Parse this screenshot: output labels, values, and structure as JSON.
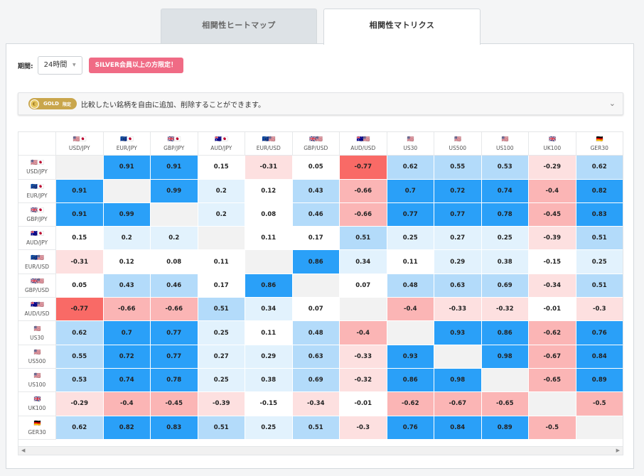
{
  "tabs": [
    {
      "label": "相関性ヒートマップ",
      "active": false
    },
    {
      "label": "相関性マトリクス",
      "active": true
    }
  ],
  "period": {
    "label": "期間:",
    "value": "24時間",
    "badge": "SILVER会員以上の方限定！"
  },
  "gold": {
    "badge": "GOLD",
    "badge_sub": "限定",
    "text": "比較したい銘柄を自由に追加、削除することができます。"
  },
  "colors": {
    "strong_pos": "#2aa0f8",
    "mid_pos": "#b3dbfa",
    "weak_pos": "#e2f2fd",
    "weak_neg": "#fde0e0",
    "mid_neg": "#fbb5b5",
    "strong_neg": "#f96a66",
    "diag": "#f2f2f2"
  },
  "matrix": {
    "symbols": [
      {
        "name": "USD/JPY",
        "flag": "🇺🇸🇯🇵"
      },
      {
        "name": "EUR/JPY",
        "flag": "🇪🇺🇯🇵"
      },
      {
        "name": "GBP/JPY",
        "flag": "🇬🇧🇯🇵"
      },
      {
        "name": "AUD/JPY",
        "flag": "🇦🇺🇯🇵"
      },
      {
        "name": "EUR/USD",
        "flag": "🇪🇺🇺🇸"
      },
      {
        "name": "GBP/USD",
        "flag": "🇬🇧🇺🇸"
      },
      {
        "name": "AUD/USD",
        "flag": "🇦🇺🇺🇸"
      },
      {
        "name": "US30",
        "flag": "🇺🇸"
      },
      {
        "name": "US500",
        "flag": "🇺🇸"
      },
      {
        "name": "US100",
        "flag": "🇺🇸"
      },
      {
        "name": "UK100",
        "flag": "🇬🇧"
      },
      {
        "name": "GER30",
        "flag": "🇩🇪"
      }
    ],
    "values": [
      [
        null,
        0.91,
        0.91,
        0.15,
        -0.31,
        0.05,
        -0.77,
        0.62,
        0.55,
        0.53,
        -0.29,
        0.62
      ],
      [
        0.91,
        null,
        0.99,
        0.2,
        0.12,
        0.43,
        -0.66,
        0.7,
        0.72,
        0.74,
        -0.4,
        0.82
      ],
      [
        0.91,
        0.99,
        null,
        0.2,
        0.08,
        0.46,
        -0.66,
        0.77,
        0.77,
        0.78,
        -0.45,
        0.83
      ],
      [
        0.15,
        0.2,
        0.2,
        null,
        0.11,
        0.17,
        0.51,
        0.25,
        0.27,
        0.25,
        -0.39,
        0.51
      ],
      [
        -0.31,
        0.12,
        0.08,
        0.11,
        null,
        0.86,
        0.34,
        0.11,
        0.29,
        0.38,
        -0.15,
        0.25
      ],
      [
        0.05,
        0.43,
        0.46,
        0.17,
        0.86,
        null,
        0.07,
        0.48,
        0.63,
        0.69,
        -0.34,
        0.51
      ],
      [
        -0.77,
        -0.66,
        -0.66,
        0.51,
        0.34,
        0.07,
        null,
        -0.4,
        -0.33,
        -0.32,
        -0.01,
        -0.3
      ],
      [
        0.62,
        0.7,
        0.77,
        0.25,
        0.11,
        0.48,
        -0.4,
        null,
        0.93,
        0.86,
        -0.62,
        0.76
      ],
      [
        0.55,
        0.72,
        0.77,
        0.27,
        0.29,
        0.63,
        -0.33,
        0.93,
        null,
        0.98,
        -0.67,
        0.84
      ],
      [
        0.53,
        0.74,
        0.78,
        0.25,
        0.38,
        0.69,
        -0.32,
        0.86,
        0.98,
        null,
        -0.65,
        0.89
      ],
      [
        -0.29,
        -0.4,
        -0.45,
        -0.39,
        -0.15,
        -0.34,
        -0.01,
        -0.62,
        -0.67,
        -0.65,
        null,
        -0.5
      ],
      [
        0.62,
        0.82,
        0.83,
        0.51,
        0.25,
        0.51,
        -0.3,
        0.76,
        0.84,
        0.89,
        -0.5,
        null
      ]
    ]
  }
}
